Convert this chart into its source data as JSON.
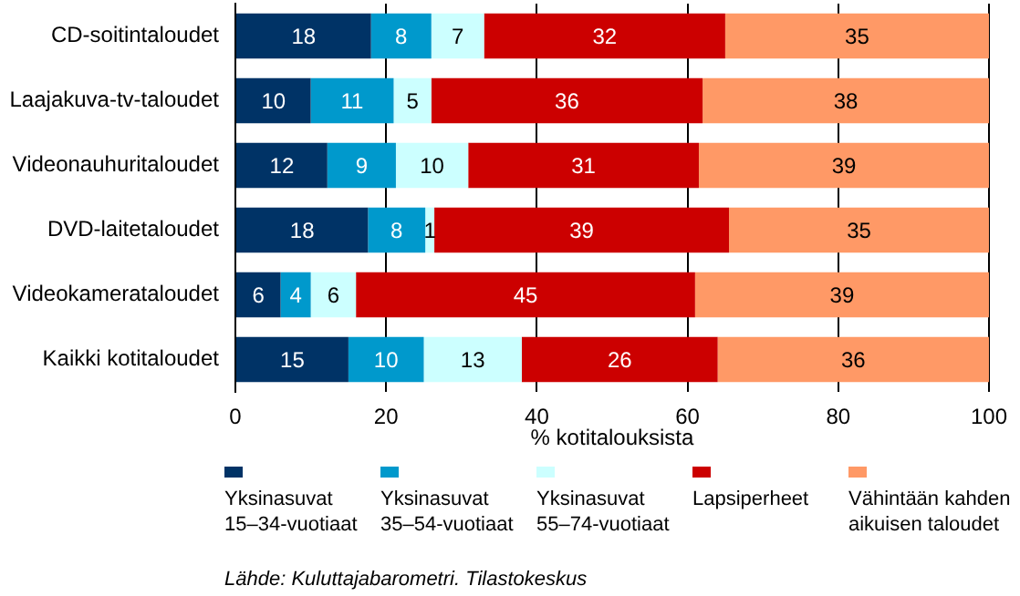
{
  "chart_data": {
    "type": "bar",
    "orientation": "horizontal",
    "stacked": true,
    "categories": [
      "CD-soitintaloudet",
      "Laajakuva-tv-taloudet",
      "Videonauhuritaloudet",
      "DVD-laitetaloudet",
      "Videokamerataloudet",
      "Kaikki kotitaloudet"
    ],
    "xlabel": "% kotitalouksista",
    "xlim": [
      0,
      100
    ],
    "xticks": [
      0,
      20,
      40,
      60,
      80,
      100
    ],
    "grid": "x",
    "legend": "bottom",
    "series": [
      {
        "name": "Yksinasuvat 15–34-vuotiaat",
        "color": "#003366",
        "values": [
          18,
          10,
          12.2,
          17.6,
          6,
          15
        ],
        "value_labels": [
          "18",
          "10",
          "12",
          "18",
          "6",
          "15"
        ]
      },
      {
        "name": "Yksinasuvat 35–54-vuotiaat",
        "color": "#0099cc",
        "values": [
          8,
          11,
          9.1,
          7.6,
          4,
          10
        ],
        "value_labels": [
          "8",
          "11",
          "9",
          "8",
          "4",
          "10"
        ]
      },
      {
        "name": "Yksinasuvat 55–74-vuotiaat",
        "color": "#ccffff",
        "values": [
          7,
          5,
          9.6,
          1.2,
          6,
          13
        ],
        "value_labels": [
          "7",
          "5",
          "10",
          "1",
          "6",
          "13"
        ]
      },
      {
        "name": "Lapsiperheet",
        "color": "#cc0000",
        "values": [
          32,
          36,
          30.6,
          39.1,
          45,
          26
        ],
        "value_labels": [
          "32",
          "36",
          "31",
          "39",
          "45",
          "26"
        ]
      },
      {
        "name": "Vähintään kahden aikuisen taloudet",
        "color": "#ff9966",
        "values": [
          35,
          38,
          38.5,
          34.5,
          39,
          36
        ],
        "value_labels": [
          "35",
          "38",
          "39",
          "35",
          "39",
          "36"
        ]
      }
    ],
    "annotations": [
      "Lähde: Kuluttajabarometri. Tilastokeskus"
    ]
  }
}
